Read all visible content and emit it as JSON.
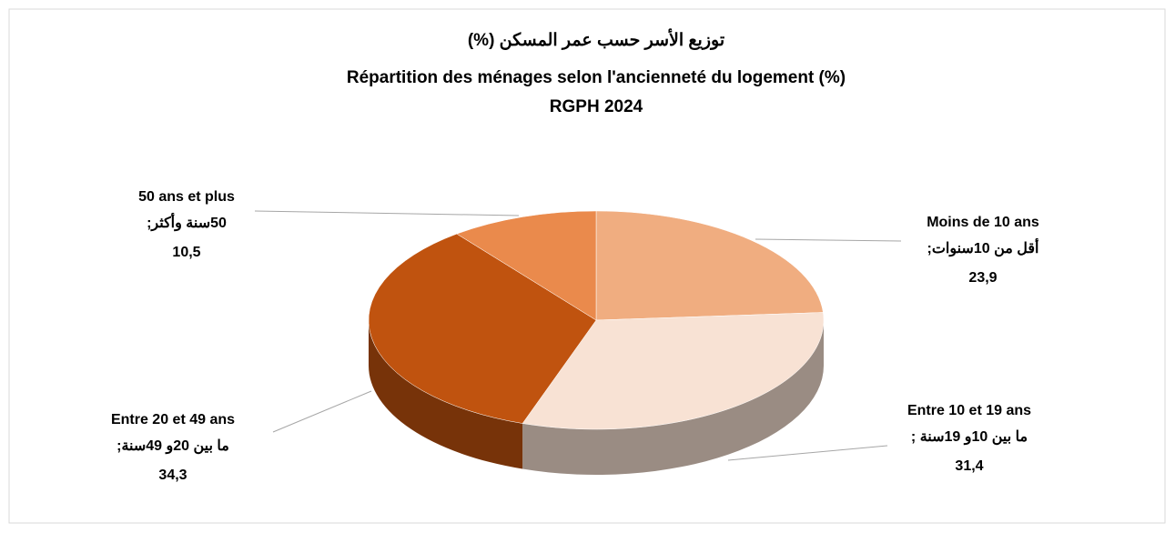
{
  "chart_data": {
    "type": "pie",
    "title": [
      "توزيع الأسر حسب عمر المسكن  (%)",
      "Répartition des ménages selon l'ancienneté du logement (%)",
      "RGPH 2024"
    ],
    "categories": [
      "Moins de 10 ans",
      "Entre 10 et 19 ans",
      "Entre 20 et 49 ans",
      "50 ans et plus"
    ],
    "categories_ar": [
      "أقل من  10سنوات;",
      "ما بين  10و  19سنة ;",
      "ما بين  20و   49سنة;",
      "50سنة وأكثر;"
    ],
    "values": [
      23.9,
      31.4,
      34.3,
      10.5
    ],
    "value_labels": [
      "23,9",
      "31,4",
      "34,3",
      "10,5"
    ],
    "colors": [
      "#f0ad80",
      "#f8e2d4",
      "#c0530f",
      "#ea8a4c"
    ]
  }
}
